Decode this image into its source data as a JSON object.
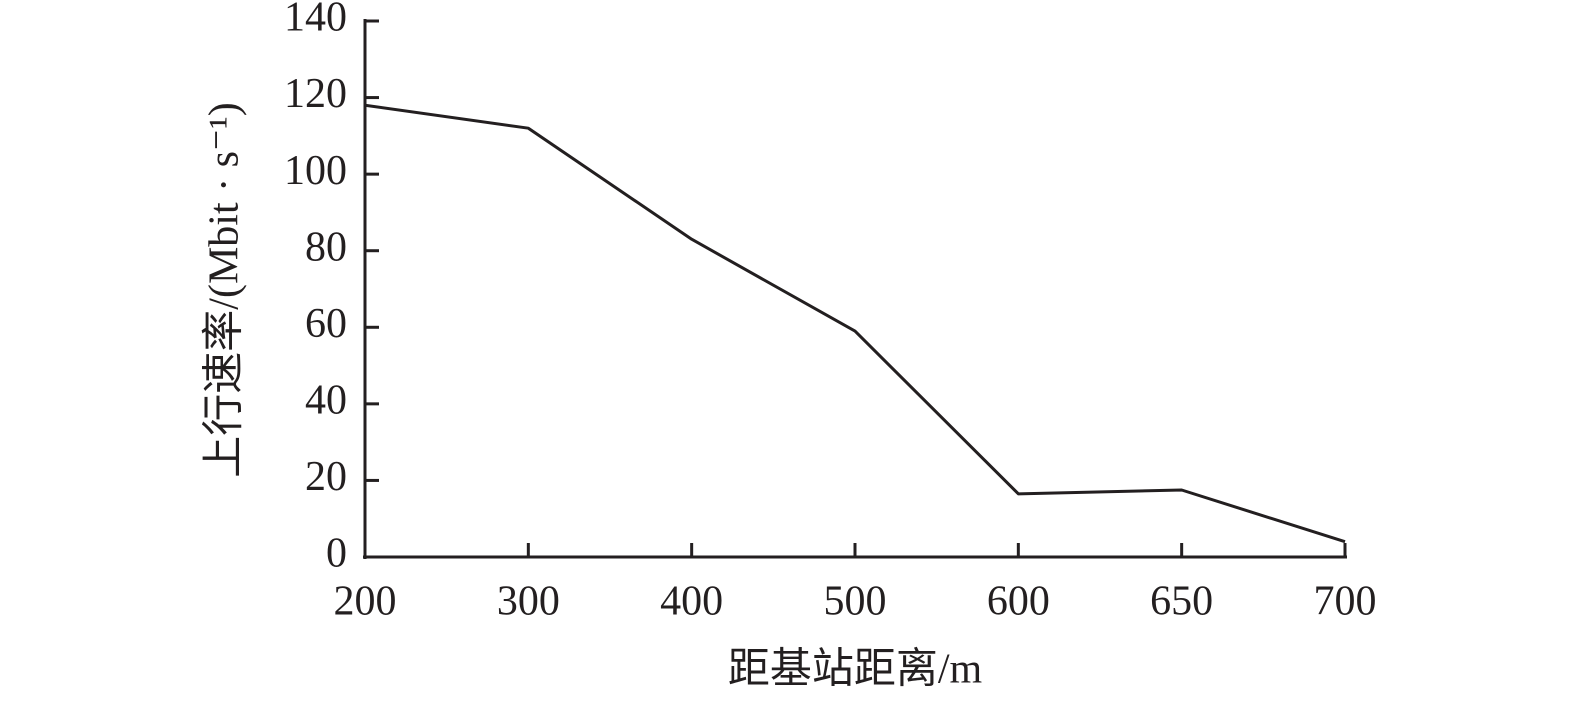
{
  "chart_data": {
    "type": "line",
    "x_label": "距基站距离/m",
    "y_label": "上行速率/(Mbit · s⁻¹)",
    "categories": [
      "200",
      "300",
      "400",
      "500",
      "600",
      "650",
      "700"
    ],
    "series": [
      {
        "color": "#231f20",
        "values": [
          118,
          112,
          83,
          59,
          16.5,
          17.5,
          4
        ]
      }
    ],
    "ylim": [
      0,
      140
    ],
    "yticks": [
      0,
      20,
      40,
      60,
      80,
      100,
      120,
      140
    ]
  }
}
